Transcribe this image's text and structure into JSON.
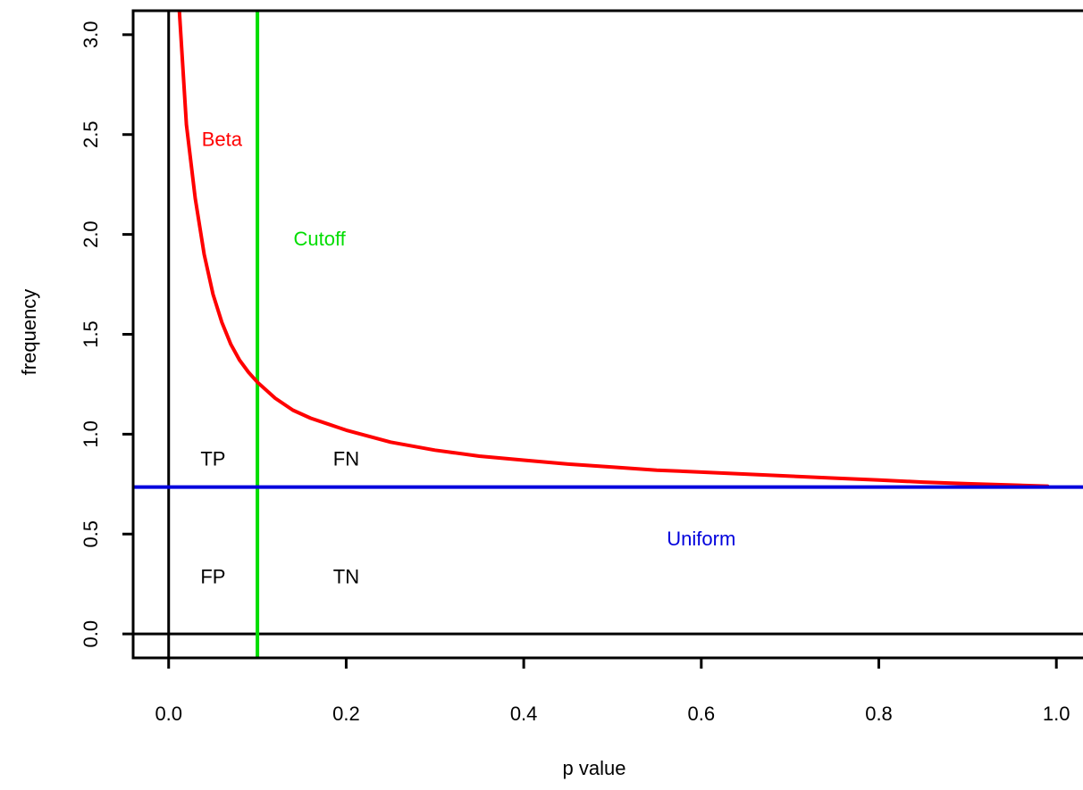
{
  "chart_data": {
    "type": "line",
    "title": "",
    "xlabel": "p value",
    "ylabel": "frequency",
    "xlim": [
      -0.04,
      1.03
    ],
    "ylim": [
      -0.12,
      3.12
    ],
    "x_ticks": [
      0.0,
      0.2,
      0.4,
      0.6,
      0.8,
      1.0
    ],
    "x_tick_labels": [
      "0.0",
      "0.2",
      "0.4",
      "0.6",
      "0.8",
      "1.0"
    ],
    "y_ticks": [
      0.0,
      0.5,
      1.0,
      1.5,
      2.0,
      2.5,
      3.0
    ],
    "y_tick_labels": [
      "0.0",
      "0.5",
      "1.0",
      "1.5",
      "2.0",
      "2.5",
      "3.0"
    ],
    "grid": false,
    "series": [
      {
        "name": "Beta",
        "color": "#ff0000",
        "x": [
          0.012,
          0.02,
          0.03,
          0.04,
          0.05,
          0.06,
          0.07,
          0.08,
          0.09,
          0.1,
          0.12,
          0.14,
          0.16,
          0.18,
          0.2,
          0.25,
          0.3,
          0.35,
          0.4,
          0.45,
          0.5,
          0.55,
          0.6,
          0.65,
          0.7,
          0.75,
          0.8,
          0.85,
          0.9,
          0.95,
          0.99
        ],
        "y": [
          3.12,
          2.55,
          2.18,
          1.9,
          1.7,
          1.56,
          1.45,
          1.37,
          1.31,
          1.26,
          1.18,
          1.12,
          1.08,
          1.05,
          1.02,
          0.96,
          0.92,
          0.89,
          0.87,
          0.85,
          0.835,
          0.82,
          0.81,
          0.8,
          0.79,
          0.78,
          0.77,
          0.76,
          0.752,
          0.745,
          0.74
        ]
      },
      {
        "name": "Uniform",
        "color": "#0000dd",
        "y": 0.735
      }
    ],
    "vertical_lines": [
      {
        "name": "Cutoff",
        "x": 0.1,
        "color": "#00dd00"
      },
      {
        "name": "y-axis",
        "x": 0.0,
        "color": "#000000"
      }
    ],
    "horizontal_lines": [
      {
        "name": "zero-line",
        "y": 0.0,
        "color": "#000000"
      }
    ],
    "annotations": [
      {
        "text": "Beta",
        "x": 0.06,
        "y": 2.47,
        "color": "#ff0000"
      },
      {
        "text": "Cutoff",
        "x": 0.17,
        "y": 1.97,
        "color": "#00dd00"
      },
      {
        "text": "Uniform",
        "x": 0.6,
        "y": 0.47,
        "color": "#0000dd"
      },
      {
        "text": "TP",
        "x": 0.05,
        "y": 0.87,
        "color": "#000000"
      },
      {
        "text": "FN",
        "x": 0.2,
        "y": 0.87,
        "color": "#000000"
      },
      {
        "text": "FP",
        "x": 0.05,
        "y": 0.28,
        "color": "#000000"
      },
      {
        "text": "TN",
        "x": 0.2,
        "y": 0.28,
        "color": "#000000"
      }
    ]
  }
}
